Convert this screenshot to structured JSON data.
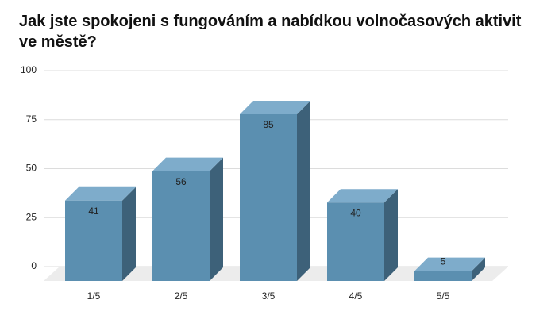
{
  "chart_data": {
    "type": "bar3d",
    "title": "Jak jste spokojeni s fungováním a nabídkou volnočasových aktivit ve městě?",
    "categories": [
      "1/5",
      "2/5",
      "3/5",
      "4/5",
      "5/5"
    ],
    "values": [
      41,
      56,
      85,
      40,
      5
    ],
    "color": "#5b8fb0",
    "ylim": [
      0,
      100
    ],
    "yticks": [
      0,
      25,
      50,
      75,
      100
    ],
    "grid": true
  }
}
